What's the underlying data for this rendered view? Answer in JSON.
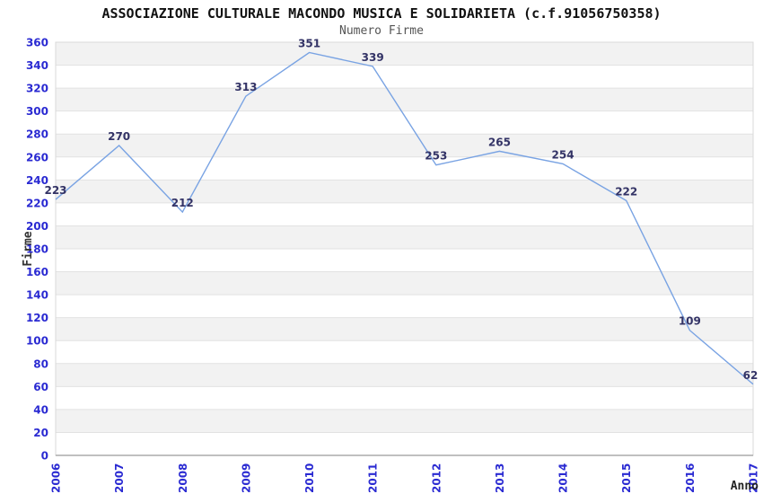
{
  "chart_data": {
    "type": "line",
    "title": "ASSOCIAZIONE CULTURALE MACONDO MUSICA E SOLIDARIETA (c.f.91056750358)",
    "subtitle": "Numero Firme",
    "xlabel": "Anno",
    "ylabel": "Firme",
    "x": [
      "2006",
      "2007",
      "2008",
      "2009",
      "2010",
      "2011",
      "2012",
      "2013",
      "2014",
      "2015",
      "2016",
      "2017"
    ],
    "values": [
      223,
      270,
      212,
      313,
      351,
      339,
      253,
      265,
      254,
      222,
      109,
      62
    ],
    "ylim": [
      0,
      360
    ],
    "yticks": [
      0,
      20,
      40,
      60,
      80,
      100,
      120,
      140,
      160,
      180,
      200,
      220,
      240,
      260,
      280,
      300,
      320,
      340,
      360
    ],
    "grid": "horizontal-bands",
    "legend": "none",
    "colors": {
      "line": "#79a3e3",
      "tick_label": "#2a2ad2",
      "data_label": "#333366",
      "band": "#f2f2f2",
      "gridline": "#e2e2e2",
      "plot_border": "#d9d9d9",
      "axis_line": "#ababab",
      "title": "#111111",
      "subtitle": "#555555",
      "axis_label": "#333333",
      "background": "#ffffff"
    }
  }
}
